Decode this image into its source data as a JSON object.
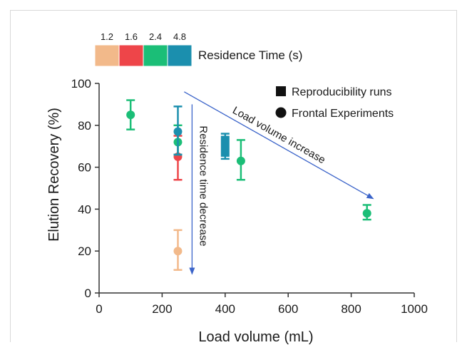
{
  "chart_data": {
    "type": "scatter",
    "xlabel": "Load volume (mL)",
    "ylabel": "Elution Recovery (%)",
    "xlim": [
      0,
      1000
    ],
    "ylim": [
      0,
      100
    ],
    "x_ticks": [
      "0",
      "200",
      "400",
      "600",
      "800",
      "1000"
    ],
    "y_ticks": [
      "0",
      "20",
      "40",
      "60",
      "80",
      "100"
    ],
    "grid": false,
    "colorbar": {
      "title": "Residence Time (s)",
      "labels": [
        "1.2",
        "1.6",
        "2.4",
        "4.8"
      ],
      "colors": [
        "#F2B98A",
        "#EE4549",
        "#1BBE77",
        "#1B8FAE"
      ]
    },
    "legend": {
      "position": "top-right",
      "entries": [
        {
          "label": "Reproducibility runs",
          "marker": "square"
        },
        {
          "label": "Frontal Experiments",
          "marker": "circle"
        }
      ]
    },
    "points": [
      {
        "x": 100,
        "y": 85,
        "y_low": 78,
        "y_high": 92,
        "residence_time": "2.4",
        "marker": "circle"
      },
      {
        "x": 250,
        "y": 20,
        "y_low": 11,
        "y_high": 30,
        "residence_time": "1.2",
        "marker": "circle"
      },
      {
        "x": 250,
        "y": 65,
        "y_low": 54,
        "y_high": 75,
        "residence_time": "1.6",
        "marker": "circle"
      },
      {
        "x": 250,
        "y": 72,
        "y_low": 66,
        "y_high": 80,
        "residence_time": "2.4",
        "marker": "circle"
      },
      {
        "x": 250,
        "y": 77,
        "y_low": 66,
        "y_high": 89,
        "residence_time": "4.8",
        "marker": "circle"
      },
      {
        "x": 400,
        "y": 70,
        "y_low": 64,
        "y_high": 76,
        "residence_time": "4.8",
        "marker": "square"
      },
      {
        "x": 450,
        "y": 63,
        "y_low": 54,
        "y_high": 73,
        "residence_time": "2.4",
        "marker": "circle"
      },
      {
        "x": 850,
        "y": 38,
        "y_low": 35,
        "y_high": 42,
        "residence_time": "2.4",
        "marker": "circle"
      }
    ],
    "annotations": [
      {
        "text": "Load volume increase",
        "from": [
          270,
          96
        ],
        "to": [
          870,
          45
        ]
      },
      {
        "text": "Residence time decrease",
        "from": [
          295,
          90
        ],
        "to": [
          295,
          9
        ]
      }
    ]
  }
}
